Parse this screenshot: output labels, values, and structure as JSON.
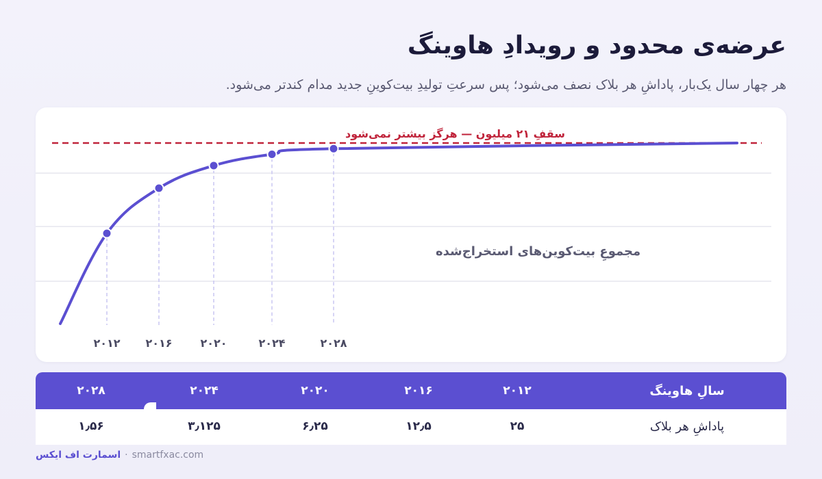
{
  "page": {
    "title": "عرضه‌ی محدود و رویدادِ هاوینگ",
    "subtitle": "هر چهار سال یک‌بار، پاداشِ هر بلاک نصف می‌شود؛ پس سرعتِ تولیدِ بیت‌کوینِ جدید مدام کندتر می‌شود."
  },
  "chart_data": {
    "type": "line",
    "title": "عرضه‌ی محدود و رویدادِ هاوینگ",
    "series_label": "مجموعِ بیت‌کوین‌های استخراج‌شده",
    "cap_label": "سقفِ ۲۱ میلیون — هرگز بیشتر نمی‌شود",
    "cap_value": 21,
    "x_unit": "year",
    "x_range": [
      2009,
      2140
    ],
    "ylim": [
      0,
      21
    ],
    "grid": true,
    "x_ticks": [
      {
        "x": 2012,
        "label": "۲۰۱۲"
      },
      {
        "x": 2016,
        "label": "۲۰۱۶"
      },
      {
        "x": 2020,
        "label": "۲۰۲۰"
      },
      {
        "x": 2024,
        "label": "۲۰۲۴"
      },
      {
        "x": 2028,
        "label": "۲۰۲۸"
      }
    ],
    "series": [
      {
        "points": [
          {
            "x": 2009,
            "y": 0
          },
          {
            "x": 2012,
            "y": 10.5
          },
          {
            "x": 2016,
            "y": 15.75
          },
          {
            "x": 2020,
            "y": 18.375
          },
          {
            "x": 2024,
            "y": 19.69
          },
          {
            "x": 2028,
            "y": 20.34
          },
          {
            "x": 2140,
            "y": 21
          }
        ],
        "markers": [
          2012,
          2016,
          2020,
          2024,
          2028
        ]
      }
    ],
    "colors": {
      "line": "#5b4fd1",
      "cap": "#c0243b",
      "grid": "#e6e6ee",
      "guide": "#c9c6f2"
    }
  },
  "table": {
    "header_label": "سالِ هاوینگ",
    "row_label": "پاداشِ هر بلاک",
    "columns": [
      {
        "year": "۲۰۱۲",
        "reward": "۲۵"
      },
      {
        "year": "۲۰۱۶",
        "reward": "۱۲٫۵"
      },
      {
        "year": "۲۰۲۰",
        "reward": "۶٫۲۵"
      },
      {
        "year": "۲۰۲۴",
        "reward": "۳٫۱۲۵"
      },
      {
        "year": "۲۰۲۸",
        "reward": "۱٫۵۶"
      }
    ],
    "colors": {
      "header_bg": "#5b4fd1"
    }
  },
  "footer": {
    "brand": "اسمارت اف ایکس",
    "separator": "·",
    "site": "smartfxac.com"
  }
}
